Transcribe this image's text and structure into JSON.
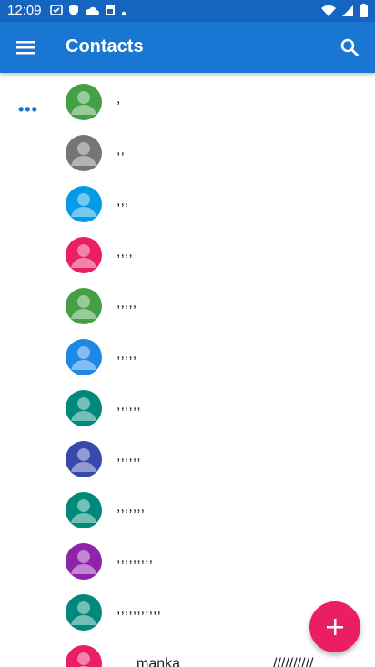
{
  "status_bar": {
    "time": "12:09"
  },
  "app_bar": {
    "title": "Contacts"
  },
  "contacts": [
    {
      "name": ",",
      "color": "#43a047"
    },
    {
      "name": ",,",
      "color": "#757575"
    },
    {
      "name": ",,,",
      "color": "#039be5"
    },
    {
      "name": ",,,,",
      "color": "#e91e63"
    },
    {
      "name": ",,,,,",
      "color": "#43a047"
    },
    {
      "name": ",,,,,",
      "color": "#1e88e5"
    },
    {
      "name": ",,,,,,",
      "color": "#00897b"
    },
    {
      "name": ",,,,,,",
      "color": "#3949ab"
    },
    {
      "name": ",,,,,,,",
      "color": "#00897b"
    },
    {
      "name": ",,,,,,,,,",
      "color": "#8e24aa"
    },
    {
      "name": ",,,,,,,,,,,",
      "color": "#00897b"
    },
    {
      "name": "manka",
      "trail": "//////////",
      "color": "#e91e63"
    }
  ],
  "colors": {
    "status_bar": "#1565c0",
    "app_bar": "#1976d2",
    "fab": "#e91e63"
  },
  "icons": {
    "menu": "hamburger-menu-icon",
    "search": "search-icon",
    "fab": "plus-icon",
    "more": "more-dots-icon"
  }
}
